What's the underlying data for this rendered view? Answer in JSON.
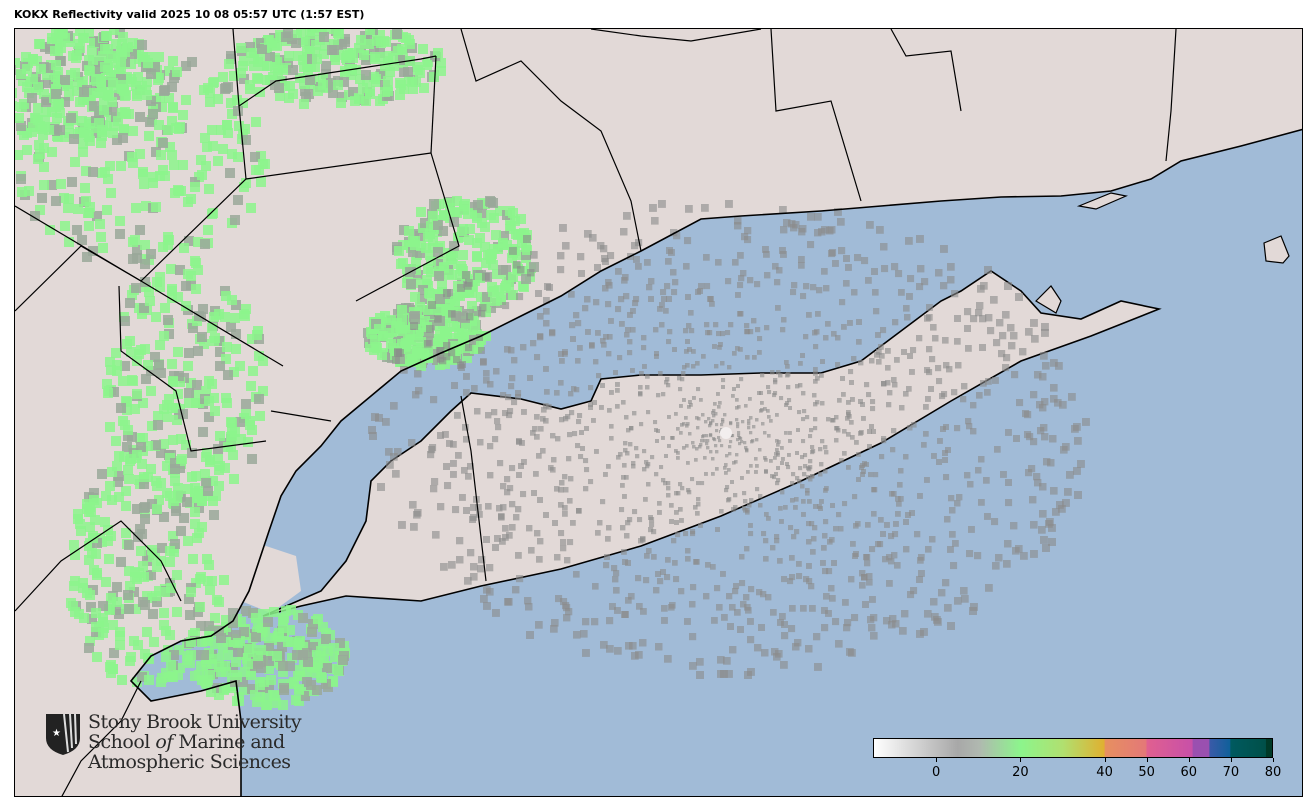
{
  "title": "KOKX Reflectivity valid 2025 10 08 05:57 UTC (1:57 EST)",
  "map": {
    "radar_site": "KOKX",
    "colors": {
      "land": "#e2d9d7",
      "water": "#a1bbd7",
      "boundary": "#000000",
      "rain_light": "#8cf58c",
      "echo_gray": "#8a8a8a"
    }
  },
  "logo": {
    "line1": "Stony Brook University",
    "line2_a": "School ",
    "line2_b": "of",
    "line2_c": " Marine and",
    "line3": "Atmospheric Sciences"
  },
  "colorbar": {
    "label": "",
    "range": [
      -15,
      80
    ],
    "ticks": [
      {
        "value": 0,
        "label": "0"
      },
      {
        "value": 20,
        "label": "20"
      },
      {
        "value": 40,
        "label": "40"
      },
      {
        "value": 50,
        "label": "50"
      },
      {
        "value": 60,
        "label": "60"
      },
      {
        "value": 70,
        "label": "70"
      },
      {
        "value": 80,
        "label": "80"
      }
    ],
    "stops": [
      {
        "value": -15,
        "color": "#ffffff"
      },
      {
        "value": 5,
        "color": "#a8a8a8"
      },
      {
        "value": 10,
        "color": "#b0b8b0"
      },
      {
        "value": 20,
        "color": "#8cf58c"
      },
      {
        "value": 30,
        "color": "#b0e070"
      },
      {
        "value": 40,
        "color": "#e0b030"
      },
      {
        "value": 40.1,
        "color": "#e69060"
      },
      {
        "value": 50,
        "color": "#e47878"
      },
      {
        "value": 50.1,
        "color": "#e06090"
      },
      {
        "value": 61,
        "color": "#c850a8"
      },
      {
        "value": 61.1,
        "color": "#9a50b0"
      },
      {
        "value": 65,
        "color": "#9a50b0"
      },
      {
        "value": 65.1,
        "color": "#3a5aa8"
      },
      {
        "value": 70,
        "color": "#10609a"
      },
      {
        "value": 70.1,
        "color": "#005a60"
      },
      {
        "value": 78.5,
        "color": "#005048"
      },
      {
        "value": 78.6,
        "color": "#003a28"
      },
      {
        "value": 80,
        "color": "#003a28"
      }
    ]
  }
}
